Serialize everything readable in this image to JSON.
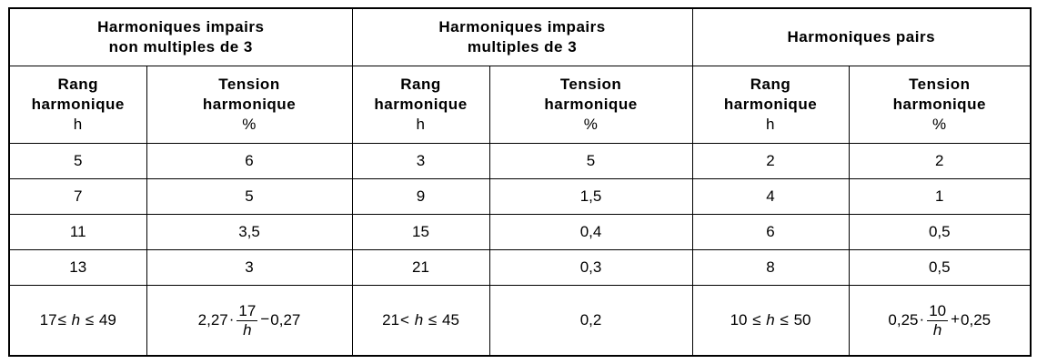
{
  "groups": [
    {
      "line1": "Harmoniques impairs",
      "line2": "non multiples de 3"
    },
    {
      "line1": "Harmoniques impairs",
      "line2": "multiples de 3"
    },
    {
      "line1": "Harmoniques pairs",
      "line2": ""
    }
  ],
  "subheaders": {
    "rank": {
      "line1": "Rang",
      "line2": "harmonique",
      "unit": "h"
    },
    "voltage": {
      "line1": "Tension",
      "line2": "harmonique",
      "unit": "%"
    }
  },
  "rows": [
    [
      "5",
      "6",
      "3",
      "5",
      "2",
      "2"
    ],
    [
      "7",
      "5",
      "9",
      "1,5",
      "4",
      "1"
    ],
    [
      "11",
      "3,5",
      "15",
      "0,4",
      "6",
      "0,5"
    ],
    [
      "13",
      "3",
      "21",
      "0,3",
      "8",
      "0,5"
    ]
  ],
  "last_row": {
    "c1": {
      "left": "17",
      "op1": "≤",
      "var": "h",
      "op2": "≤",
      "right": "49"
    },
    "c2": {
      "coef": "2,27",
      "dot": "·",
      "num": "17",
      "den": "h",
      "op": "−",
      "const": "0,27"
    },
    "c3": {
      "left": "21",
      "op1": "<",
      "var": "h",
      "op2": "≤",
      "right": "45"
    },
    "c4": {
      "value": "0,2"
    },
    "c5": {
      "left": "10",
      "op1": "≤",
      "var": "h",
      "op2": "≤",
      "right": "50"
    },
    "c6": {
      "coef": "0,25",
      "dot": "·",
      "num": "10",
      "den": "h",
      "op": "+",
      "const": "0,25"
    }
  }
}
